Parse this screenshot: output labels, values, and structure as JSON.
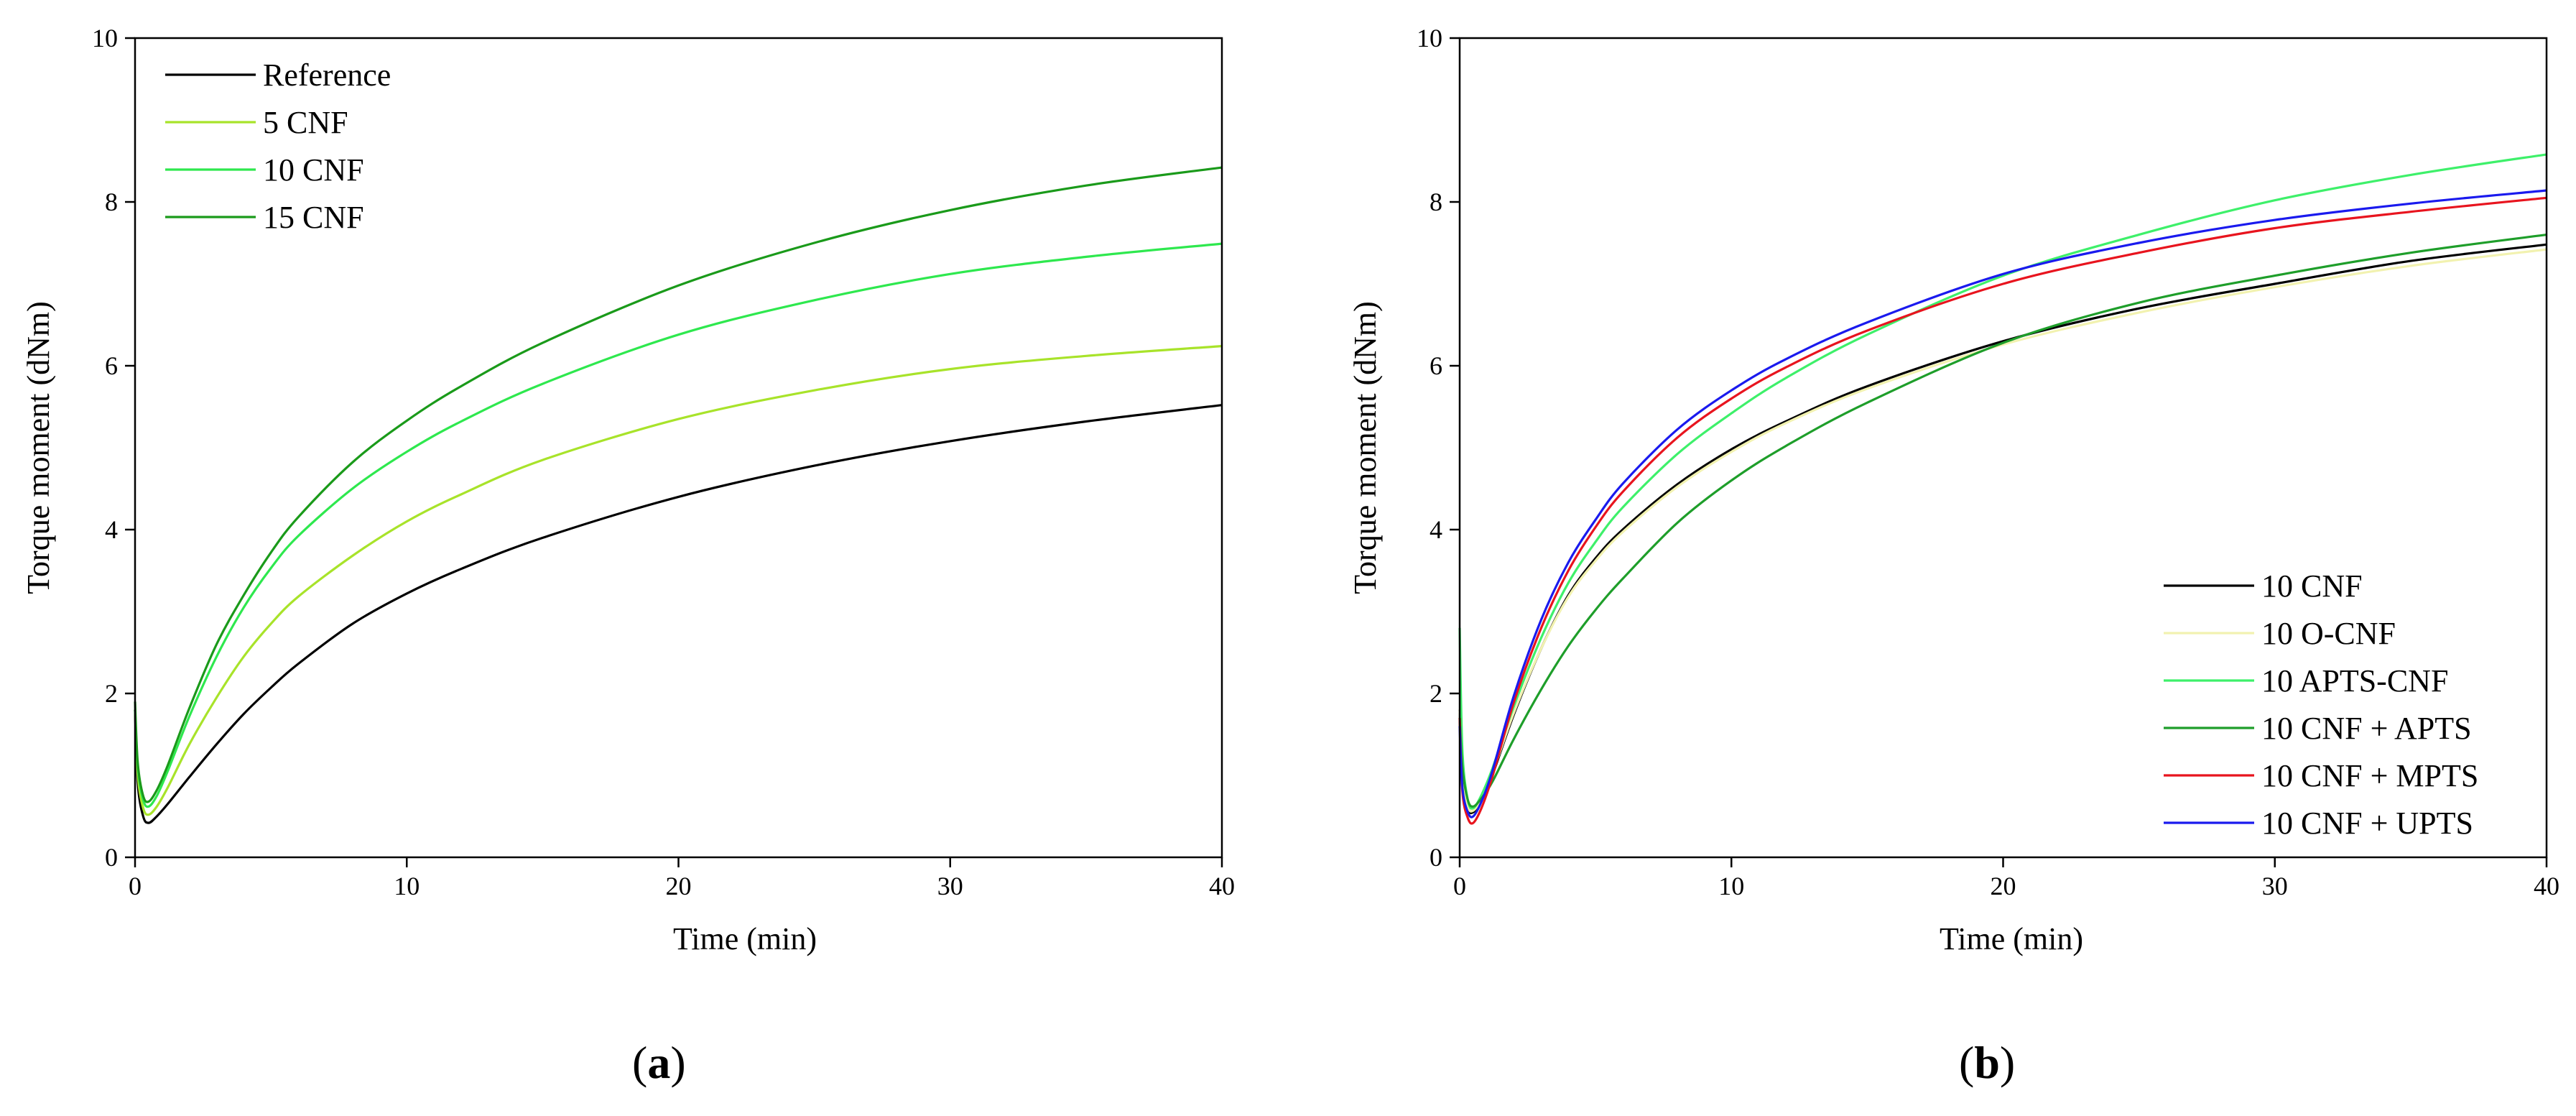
{
  "chart_data": [
    {
      "type": "line",
      "panel_label": "(a)",
      "xlabel": "Time (min)",
      "ylabel": "Torque moment (dNm)",
      "xlim": [
        0,
        40
      ],
      "ylim": [
        0,
        10
      ],
      "xticks": [
        0,
        10,
        20,
        30,
        40
      ],
      "yticks": [
        0,
        2,
        4,
        6,
        8,
        10
      ],
      "grid": false,
      "legend_position": "top-left",
      "series": [
        {
          "name": "Reference",
          "color": "#000000",
          "x": [
            0,
            0.1,
            0.3,
            0.5,
            0.8,
            1.2,
            2,
            3,
            4,
            5,
            6,
            8,
            10,
            12,
            15,
            20,
            25,
            30,
            35,
            40
          ],
          "y": [
            1.8,
            0.9,
            0.5,
            0.42,
            0.5,
            0.65,
            0.98,
            1.38,
            1.75,
            2.07,
            2.36,
            2.85,
            3.22,
            3.52,
            3.9,
            4.4,
            4.78,
            5.08,
            5.32,
            5.52
          ]
        },
        {
          "name": "5 CNF",
          "color": "#a8e32a",
          "x": [
            0,
            0.1,
            0.3,
            0.5,
            0.8,
            1.2,
            2,
            3,
            4,
            5,
            6,
            8,
            10,
            12,
            15,
            20,
            25,
            30,
            35,
            40
          ],
          "y": [
            1.8,
            1.0,
            0.6,
            0.52,
            0.62,
            0.85,
            1.38,
            1.95,
            2.45,
            2.85,
            3.18,
            3.68,
            4.1,
            4.43,
            4.85,
            5.35,
            5.7,
            5.96,
            6.12,
            6.24
          ]
        },
        {
          "name": "10 CNF",
          "color": "#2ee84e",
          "x": [
            0,
            0.1,
            0.3,
            0.5,
            0.8,
            1.2,
            2,
            3,
            4,
            5,
            6,
            8,
            10,
            12,
            15,
            20,
            25,
            30,
            35,
            40
          ],
          "y": [
            1.8,
            1.1,
            0.7,
            0.62,
            0.75,
            1.05,
            1.72,
            2.45,
            3.05,
            3.53,
            3.92,
            4.5,
            4.95,
            5.32,
            5.78,
            6.38,
            6.8,
            7.12,
            7.33,
            7.49
          ]
        },
        {
          "name": "15 CNF",
          "color": "#1a9a1a",
          "x": [
            0,
            0.1,
            0.3,
            0.5,
            0.8,
            1.2,
            2,
            3,
            4,
            5,
            6,
            8,
            10,
            12,
            15,
            20,
            25,
            30,
            35,
            40
          ],
          "y": [
            1.9,
            1.15,
            0.75,
            0.68,
            0.82,
            1.12,
            1.82,
            2.6,
            3.2,
            3.72,
            4.15,
            4.82,
            5.33,
            5.75,
            6.28,
            6.98,
            7.5,
            7.9,
            8.2,
            8.42
          ]
        }
      ]
    },
    {
      "type": "line",
      "panel_label": "(b)",
      "xlabel": "Time (min)",
      "ylabel": "Torque moment (dNm)",
      "xlim": [
        0,
        40
      ],
      "ylim": [
        0,
        10
      ],
      "xticks": [
        0,
        10,
        20,
        30,
        40
      ],
      "yticks": [
        0,
        2,
        4,
        6,
        8,
        10
      ],
      "grid": false,
      "legend_position": "bottom-right",
      "series": [
        {
          "name": "10 CNF",
          "color": "#000000",
          "x": [
            0,
            0.1,
            0.3,
            0.5,
            0.8,
            1.2,
            2,
            3,
            4,
            5,
            6,
            8,
            10,
            12,
            15,
            20,
            25,
            30,
            35,
            40
          ],
          "y": [
            1.8,
            1.0,
            0.6,
            0.55,
            0.7,
            1.0,
            1.75,
            2.55,
            3.2,
            3.65,
            4.0,
            4.55,
            4.98,
            5.32,
            5.75,
            6.3,
            6.7,
            7.0,
            7.28,
            7.48
          ]
        },
        {
          "name": "10 O-CNF",
          "color": "#f2f2b0",
          "x": [
            0,
            0.1,
            0.3,
            0.5,
            0.8,
            1.2,
            2,
            3,
            4,
            5,
            6,
            8,
            10,
            12,
            15,
            20,
            25,
            30,
            35,
            40
          ],
          "y": [
            1.8,
            1.0,
            0.62,
            0.57,
            0.72,
            1.02,
            1.77,
            2.55,
            3.18,
            3.62,
            3.97,
            4.52,
            4.95,
            5.3,
            5.72,
            6.26,
            6.65,
            6.96,
            7.22,
            7.42
          ]
        },
        {
          "name": "10 APTS-CNF",
          "color": "#3ef06a",
          "x": [
            0,
            0.1,
            0.3,
            0.5,
            0.8,
            1.2,
            2,
            3,
            4,
            5,
            6,
            8,
            10,
            12,
            15,
            20,
            25,
            30,
            35,
            40
          ],
          "y": [
            2.8,
            1.3,
            0.7,
            0.6,
            0.76,
            1.08,
            1.85,
            2.68,
            3.35,
            3.85,
            4.27,
            4.92,
            5.42,
            5.85,
            6.38,
            7.1,
            7.6,
            8.02,
            8.33,
            8.58
          ]
        },
        {
          "name": "10 CNF + APTS",
          "color": "#1e9e2a",
          "x": [
            0,
            0.1,
            0.3,
            0.5,
            0.8,
            1.2,
            2,
            3,
            4,
            5,
            6,
            8,
            10,
            12,
            15,
            20,
            25,
            30,
            35,
            40
          ],
          "y": [
            1.7,
            1.1,
            0.7,
            0.62,
            0.72,
            0.92,
            1.45,
            2.05,
            2.58,
            3.02,
            3.4,
            4.08,
            4.6,
            5.02,
            5.55,
            6.28,
            6.77,
            7.1,
            7.38,
            7.6
          ]
        },
        {
          "name": "10 CNF + MPTS",
          "color": "#e8141e",
          "x": [
            0,
            0.1,
            0.3,
            0.5,
            0.8,
            1.2,
            2,
            3,
            4,
            5,
            6,
            8,
            10,
            12,
            15,
            20,
            25,
            30,
            35,
            40
          ],
          "y": [
            1.7,
            0.8,
            0.48,
            0.42,
            0.6,
            0.98,
            1.9,
            2.8,
            3.5,
            4.03,
            4.46,
            5.12,
            5.6,
            5.98,
            6.43,
            7.0,
            7.38,
            7.68,
            7.88,
            8.05
          ]
        },
        {
          "name": "10 CNF + UPTS",
          "color": "#1a1aee",
          "x": [
            0,
            0.1,
            0.3,
            0.5,
            0.8,
            1.2,
            2,
            3,
            4,
            5,
            6,
            8,
            10,
            12,
            15,
            20,
            25,
            30,
            35,
            40
          ],
          "y": [
            1.6,
            0.85,
            0.55,
            0.5,
            0.68,
            1.05,
            1.98,
            2.9,
            3.6,
            4.12,
            4.56,
            5.22,
            5.7,
            6.08,
            6.53,
            7.12,
            7.5,
            7.78,
            7.98,
            8.14
          ]
        }
      ]
    }
  ]
}
